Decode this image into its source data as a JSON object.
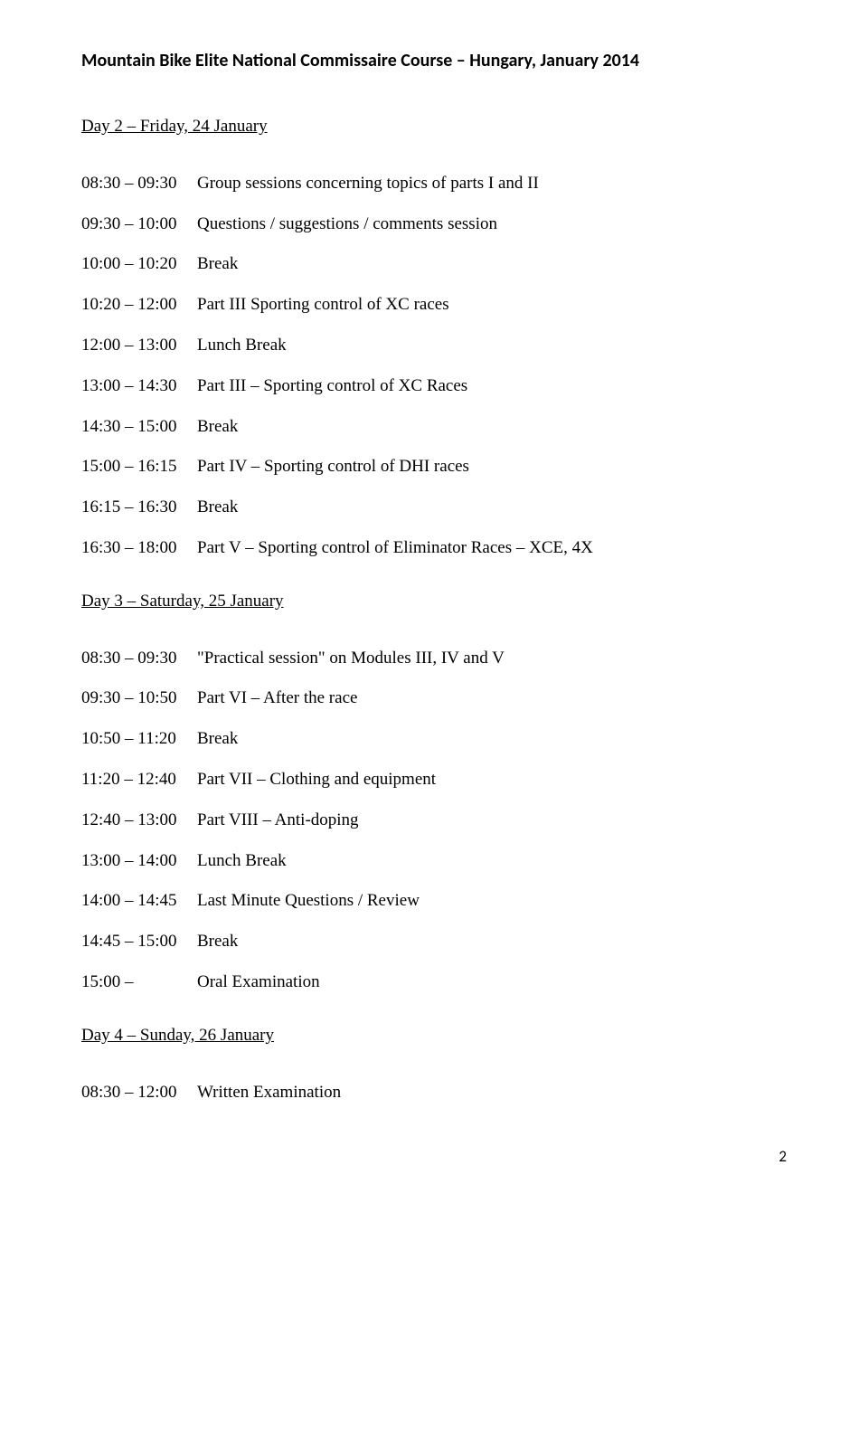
{
  "header": "Mountain Bike Elite National Commissaire Course – Hungary, January 2014",
  "page_number": "2",
  "days": [
    {
      "title": "Day 2 – Friday, 24 January",
      "rows": [
        {
          "time": "08:30 – 09:30",
          "desc": "Group sessions concerning topics of parts I and II"
        },
        {
          "time": "09:30 – 10:00",
          "desc": "Questions / suggestions / comments session"
        },
        {
          "time": "10:00 – 10:20",
          "desc": "Break"
        },
        {
          "time": "10:20 – 12:00",
          "desc": "Part III Sporting control of XC races"
        },
        {
          "time": "12:00 – 13:00",
          "desc": "Lunch Break"
        },
        {
          "time": "13:00 – 14:30",
          "desc": "Part III – Sporting control of XC Races"
        },
        {
          "time": "14:30 – 15:00",
          "desc": "Break"
        },
        {
          "time": "15:00 – 16:15",
          "desc": "Part IV – Sporting control of DHI races"
        },
        {
          "time": "16:15 – 16:30",
          "desc": "Break"
        },
        {
          "time": "16:30 – 18:00",
          "desc": "Part V – Sporting control of Eliminator Races – XCE, 4X"
        }
      ]
    },
    {
      "title": "Day 3 – Saturday, 25 January",
      "rows": [
        {
          "time": "08:30 – 09:30",
          "desc": "\"Practical session\" on Modules III, IV and V"
        },
        {
          "time": "09:30 – 10:50",
          "desc": "Part VI – After the race"
        },
        {
          "time": "10:50 – 11:20",
          "desc": "Break"
        },
        {
          "time": "11:20 – 12:40",
          "desc": "Part VII – Clothing and equipment"
        },
        {
          "time": "12:40 – 13:00",
          "desc": "Part VIII – Anti-doping"
        },
        {
          "time": "13:00 – 14:00",
          "desc": "Lunch Break"
        },
        {
          "time": "14:00 – 14:45",
          "desc": "Last Minute Questions / Review"
        },
        {
          "time": "14:45 – 15:00",
          "desc": "Break"
        },
        {
          "time": "15:00 –",
          "desc": "Oral Examination"
        }
      ]
    },
    {
      "title": "Day 4 – Sunday, 26 January",
      "rows": [
        {
          "time": "08:30 – 12:00",
          "desc": "Written Examination"
        }
      ]
    }
  ]
}
